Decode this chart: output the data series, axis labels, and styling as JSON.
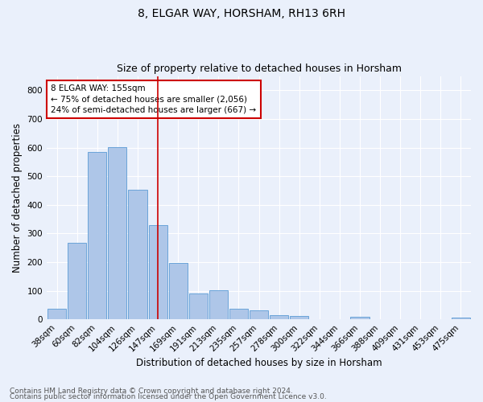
{
  "title": "8, ELGAR WAY, HORSHAM, RH13 6RH",
  "subtitle": "Size of property relative to detached houses in Horsham",
  "xlabel": "Distribution of detached houses by size in Horsham",
  "ylabel": "Number of detached properties",
  "categories": [
    "38sqm",
    "60sqm",
    "82sqm",
    "104sqm",
    "126sqm",
    "147sqm",
    "169sqm",
    "191sqm",
    "213sqm",
    "235sqm",
    "257sqm",
    "278sqm",
    "300sqm",
    "322sqm",
    "344sqm",
    "366sqm",
    "388sqm",
    "409sqm",
    "431sqm",
    "453sqm",
    "475sqm"
  ],
  "values": [
    38,
    267,
    585,
    603,
    453,
    330,
    197,
    90,
    101,
    38,
    31,
    16,
    11,
    0,
    0,
    8,
    0,
    0,
    0,
    0,
    7
  ],
  "bar_color": "#aec6e8",
  "bar_edge_color": "#5b9bd5",
  "bg_color": "#eaf0fb",
  "grid_color": "#ffffff",
  "annotation_line_label": "8 ELGAR WAY: 155sqm",
  "annotation_line1": "← 75% of detached houses are smaller (2,056)",
  "annotation_line2": "24% of semi-detached houses are larger (667) →",
  "annotation_box_color": "#ffffff",
  "annotation_box_edge_color": "#cc0000",
  "vline_color": "#cc0000",
  "ylim": [
    0,
    850
  ],
  "yticks": [
    0,
    100,
    200,
    300,
    400,
    500,
    600,
    700,
    800
  ],
  "footnote1": "Contains HM Land Registry data © Crown copyright and database right 2024.",
  "footnote2": "Contains public sector information licensed under the Open Government Licence v3.0.",
  "title_fontsize": 10,
  "subtitle_fontsize": 9,
  "axis_label_fontsize": 8.5,
  "tick_fontsize": 7.5,
  "annotation_fontsize": 7.5,
  "footnote_fontsize": 6.5
}
